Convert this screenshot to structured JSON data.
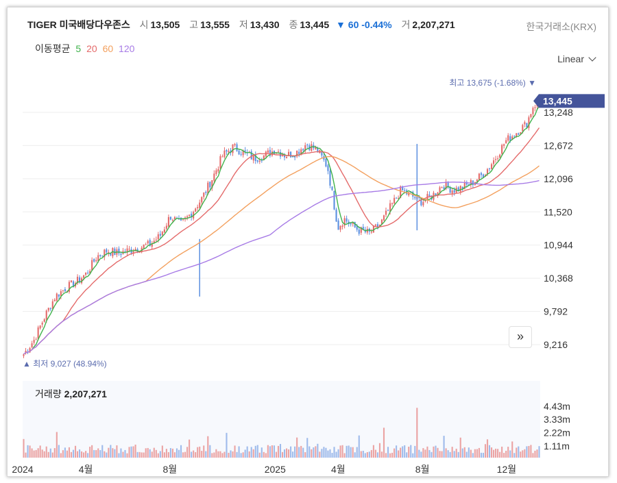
{
  "header": {
    "name": "TIGER 미국배당다우존스",
    "open_label": "시",
    "open": "13,505",
    "high_label": "고",
    "high": "13,555",
    "low_label": "저",
    "low": "13,430",
    "close_label": "종",
    "close": "13,445",
    "change_arrow": "▼",
    "change": "60",
    "change_pct": "-0.44%",
    "volume_label": "거",
    "volume": "2,207,271"
  },
  "exchange": "한국거래소(KRX)",
  "moving_average": {
    "label": "이동평균",
    "periods": [
      "5",
      "20",
      "60",
      "120"
    ],
    "colors": [
      "#3fb24b",
      "#e46a6a",
      "#f3a05e",
      "#a77be6"
    ]
  },
  "scale_mode": "Linear",
  "volume_panel": {
    "label": "거래량",
    "value": "2,207,271"
  },
  "price_tag": "13,445",
  "high_marker": {
    "label": "최고",
    "value": "13,675",
    "pct": "(-1.68%)",
    "arrow": "▼"
  },
  "low_marker": {
    "label": "최저",
    "value": "9,027",
    "pct": "(48.94%)",
    "arrow": "▲"
  },
  "colors": {
    "up": "#e46a6a",
    "down": "#5b8fe0",
    "tag": "#44549a",
    "grid": "#eeeeee"
  },
  "chart_data": {
    "type": "candlestick",
    "price_axis": {
      "ticks": [
        "13,248",
        "12,672",
        "12,096",
        "11,520",
        "10,944",
        "10,368",
        "9,792",
        "9,216"
      ],
      "values": [
        13248,
        12672,
        12096,
        11520,
        10944,
        10368,
        9792,
        9216
      ]
    },
    "volume_axis": {
      "ticks": [
        "4.43m",
        "3.33m",
        "2.22m",
        "1.11m"
      ],
      "values": [
        4430000,
        3330000,
        2220000,
        1110000
      ]
    },
    "x_ticks": [
      "2024",
      "4월",
      "8월",
      "2025",
      "4월",
      "8월",
      "12월"
    ],
    "x_tick_months": [
      0,
      3,
      7,
      12,
      15,
      19,
      23
    ],
    "months_covered": 24.6,
    "close_path_months": [
      0,
      0.5,
      1,
      1.5,
      2,
      2.5,
      3,
      3.5,
      4,
      4.5,
      5,
      5.5,
      6,
      6.5,
      7,
      7.5,
      8,
      8.5,
      9,
      9.5,
      10,
      10.5,
      11,
      11.5,
      12,
      12.5,
      13,
      13.5,
      14,
      14.5,
      15,
      15.3,
      15.6,
      16,
      16.5,
      17,
      17.5,
      18,
      18.5,
      19,
      19.5,
      20,
      20.5,
      21,
      21.5,
      22,
      22.5,
      23,
      23.5,
      24,
      24.3,
      24.6
    ],
    "close_path_values": [
      9050,
      9300,
      9700,
      10050,
      10200,
      10300,
      10450,
      10750,
      10850,
      10800,
      10850,
      10900,
      10950,
      11100,
      11450,
      11300,
      11500,
      11750,
      12100,
      12500,
      12650,
      12550,
      12450,
      12500,
      12600,
      12500,
      12550,
      12700,
      12600,
      12300,
      11250,
      11400,
      11300,
      11200,
      11150,
      11300,
      11600,
      11900,
      11800,
      11700,
      11800,
      12000,
      11900,
      11950,
      12050,
      12200,
      12450,
      12750,
      12900,
      13050,
      13350,
      13445
    ],
    "period_high": 13675,
    "period_low": 9027
  }
}
